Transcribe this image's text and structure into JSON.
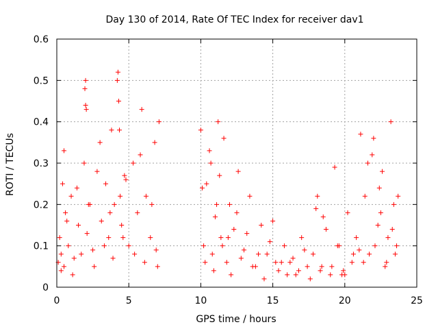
{
  "colors": {
    "series": "#ff0000",
    "axis": "#000000",
    "grid": "#a0a0a0",
    "background": "#ffffff"
  },
  "chart_data": {
    "type": "scatter",
    "title": "Day 130 of 2014, Rate Of TEC Index for receiver dav1",
    "xlabel": "GPS time / hours",
    "ylabel": "ROTI / TECUs",
    "xlim": [
      0,
      25
    ],
    "ylim": [
      0,
      0.6
    ],
    "xticks": [
      "0",
      "5",
      "10",
      "15",
      "20",
      "25"
    ],
    "yticks": [
      "0",
      "0.1",
      "0.2",
      "0.3",
      "0.4",
      "0.5",
      "0.6"
    ],
    "xtick_values": [
      0,
      5,
      10,
      15,
      20,
      25
    ],
    "ytick_values": [
      0,
      0.1,
      0.2,
      0.3,
      0.4,
      0.5,
      0.6
    ],
    "grid": true,
    "marker": "plus",
    "series": [
      {
        "name": "ROTI",
        "x": [
          0.1,
          0.2,
          0.3,
          0.4,
          0.5,
          0.6,
          0.8,
          1.0,
          1.2,
          1.5,
          1.9,
          1.95,
          2.0,
          2.0,
          2.05,
          2.1,
          2.3,
          2.5,
          2.8,
          3.1,
          3.4,
          3.6,
          3.8,
          4.0,
          4.2,
          4.25,
          4.3,
          4.35,
          4.4,
          4.5,
          4.7,
          5.0,
          5.3,
          5.6,
          5.9,
          6.2,
          6.5,
          6.8,
          7.0,
          7.1,
          0.3,
          0.7,
          1.1,
          1.7,
          2.6,
          3.3,
          3.9,
          4.6,
          5.4,
          6.1,
          6.9,
          0.5,
          1.4,
          2.2,
          3.0,
          3.7,
          4.8,
          5.8,
          6.6,
          10.0,
          10.2,
          10.4,
          10.6,
          10.8,
          11.0,
          11.2,
          11.4,
          11.6,
          11.8,
          12.0,
          12.3,
          12.6,
          13.0,
          13.4,
          13.8,
          14.2,
          14.6,
          15.0,
          15.4,
          15.8,
          16.2,
          16.6,
          17.0,
          17.4,
          17.8,
          18.1,
          18.4,
          18.7,
          19.0,
          19.3,
          19.6,
          19.9,
          20.2,
          20.5,
          20.8,
          21.1,
          21.4,
          21.7,
          22.0,
          22.3,
          22.6,
          22.9,
          23.2,
          23.4,
          23.6,
          10.3,
          10.9,
          11.5,
          12.1,
          12.8,
          13.6,
          14.4,
          15.2,
          16.0,
          16.8,
          17.6,
          18.3,
          19.1,
          19.8,
          20.6,
          21.3,
          22.1,
          22.8,
          23.5,
          10.7,
          11.3,
          12.5,
          13.2,
          14.8,
          16.4,
          18.0,
          19.5,
          21.0,
          21.9,
          22.5,
          23.3,
          10.1,
          11.1,
          11.9,
          14.0,
          15.6,
          17.2,
          18.5,
          20.0,
          21.6,
          22.4,
          23.0,
          23.7
        ],
        "y": [
          0.06,
          0.12,
          0.08,
          0.25,
          0.05,
          0.18,
          0.1,
          0.22,
          0.07,
          0.15,
          0.3,
          0.48,
          0.44,
          0.5,
          0.43,
          0.13,
          0.2,
          0.09,
          0.28,
          0.16,
          0.25,
          0.12,
          0.38,
          0.2,
          0.5,
          0.52,
          0.45,
          0.38,
          0.22,
          0.15,
          0.27,
          0.1,
          0.3,
          0.18,
          0.43,
          0.22,
          0.12,
          0.35,
          0.05,
          0.4,
          0.04,
          0.16,
          0.03,
          0.08,
          0.05,
          0.1,
          0.07,
          0.12,
          0.08,
          0.06,
          0.09,
          0.33,
          0.24,
          0.2,
          0.35,
          0.18,
          0.26,
          0.32,
          0.2,
          0.38,
          0.1,
          0.25,
          0.33,
          0.08,
          0.17,
          0.4,
          0.12,
          0.36,
          0.06,
          0.2,
          0.14,
          0.28,
          0.09,
          0.22,
          0.05,
          0.15,
          0.08,
          0.16,
          0.04,
          0.1,
          0.06,
          0.03,
          0.12,
          0.05,
          0.08,
          0.22,
          0.05,
          0.14,
          0.03,
          0.29,
          0.1,
          0.04,
          0.18,
          0.06,
          0.12,
          0.37,
          0.22,
          0.08,
          0.36,
          0.15,
          0.28,
          0.06,
          0.4,
          0.2,
          0.1,
          0.06,
          0.04,
          0.1,
          0.03,
          0.07,
          0.05,
          0.02,
          0.06,
          0.03,
          0.04,
          0.02,
          0.04,
          0.05,
          0.03,
          0.08,
          0.06,
          0.1,
          0.05,
          0.08,
          0.3,
          0.27,
          0.18,
          0.13,
          0.11,
          0.07,
          0.19,
          0.1,
          0.09,
          0.32,
          0.18,
          0.14,
          0.24,
          0.2,
          0.12,
          0.08,
          0.06,
          0.09,
          0.17,
          0.03,
          0.3,
          0.24,
          0.12,
          0.22
        ]
      }
    ]
  }
}
